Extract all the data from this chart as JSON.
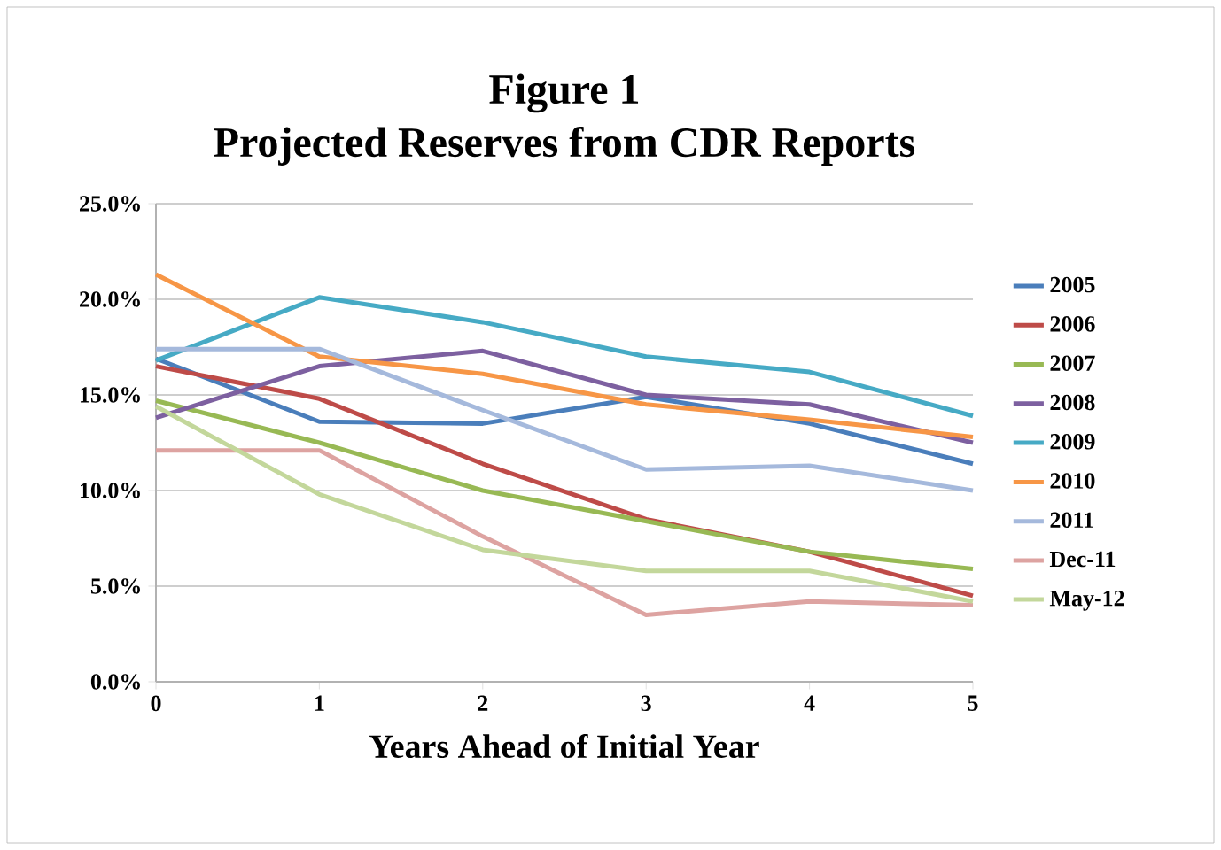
{
  "chart_data": {
    "type": "line",
    "title": "Figure 1",
    "subtitle": "Projected Reserves from CDR Reports",
    "xlabel": "Years Ahead of Initial Year",
    "x": [
      0,
      1,
      2,
      3,
      4,
      5
    ],
    "xlim": [
      0,
      5
    ],
    "xticks": [
      0,
      1,
      2,
      3,
      4,
      5
    ],
    "ylim": [
      0,
      25
    ],
    "yticks": [
      {
        "value": 0,
        "label": "0.0%"
      },
      {
        "value": 5,
        "label": "5.0%"
      },
      {
        "value": 10,
        "label": "10.0%"
      },
      {
        "value": 15,
        "label": "15.0%"
      },
      {
        "value": 20,
        "label": "20.0%"
      },
      {
        "value": 25,
        "label": "25.0%"
      }
    ],
    "grid": "y",
    "legend": "right",
    "marker": "none",
    "series": [
      {
        "name": "2005",
        "color": "#4a7ebb",
        "values": [
          16.9,
          13.6,
          13.5,
          14.9,
          13.5,
          11.4
        ]
      },
      {
        "name": "2006",
        "color": "#be4b48",
        "values": [
          16.5,
          14.8,
          11.4,
          8.5,
          6.8,
          4.5
        ]
      },
      {
        "name": "2007",
        "color": "#98b954",
        "values": [
          14.7,
          12.5,
          10.0,
          8.4,
          6.8,
          5.9
        ]
      },
      {
        "name": "2008",
        "color": "#7d60a0",
        "values": [
          13.8,
          16.5,
          17.3,
          15.0,
          14.5,
          12.5
        ]
      },
      {
        "name": "2009",
        "color": "#46aac5",
        "values": [
          16.8,
          20.1,
          18.8,
          17.0,
          16.2,
          13.9
        ]
      },
      {
        "name": "2010",
        "color": "#f79646",
        "values": [
          21.3,
          17.0,
          16.1,
          14.5,
          13.7,
          12.8
        ]
      },
      {
        "name": "2011",
        "color": "#a5b9dc",
        "values": [
          17.4,
          17.4,
          14.2,
          11.1,
          11.3,
          10.0
        ]
      },
      {
        "name": "Dec-11",
        "color": "#dda3a1",
        "values": [
          12.1,
          12.1,
          7.6,
          3.5,
          4.2,
          4.0
        ]
      },
      {
        "name": "May-12",
        "color": "#c3d79b",
        "values": [
          14.4,
          9.8,
          6.9,
          5.8,
          5.8,
          4.2
        ]
      }
    ]
  }
}
